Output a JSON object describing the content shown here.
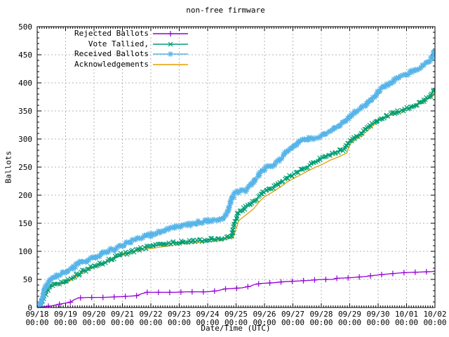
{
  "chart_data": {
    "type": "line",
    "title": "non-free firmware",
    "xlabel": "Date/Time (UTC)",
    "ylabel": "Ballots",
    "x_unit": "days since 09/18 00:00",
    "xlim": [
      0,
      14
    ],
    "ylim": [
      0,
      500
    ],
    "y_major_step": 50,
    "y_minor_step": 10,
    "x_minor_per_day": 12,
    "grid": "dashed gray at every day (x) and every 50 ballots (y)",
    "legend_position": "top-left inside plot, no box",
    "x_ticks": [
      {
        "date": "09/18",
        "time": "00:00"
      },
      {
        "date": "09/19",
        "time": "00:00"
      },
      {
        "date": "09/20",
        "time": "00:00"
      },
      {
        "date": "09/21",
        "time": "00:00"
      },
      {
        "date": "09/22",
        "time": "00:00"
      },
      {
        "date": "09/23",
        "time": "00:00"
      },
      {
        "date": "09/24",
        "time": "00:00"
      },
      {
        "date": "09/25",
        "time": "00:00"
      },
      {
        "date": "09/26",
        "time": "00:00"
      },
      {
        "date": "09/27",
        "time": "00:00"
      },
      {
        "date": "09/28",
        "time": "00:00"
      },
      {
        "date": "09/29",
        "time": "00:00"
      },
      {
        "date": "09/30",
        "time": "00:00"
      },
      {
        "date": "10/01",
        "time": "00:00"
      },
      {
        "date": "10/02",
        "time": "00:00"
      }
    ],
    "y_ticks": [
      0,
      50,
      100,
      150,
      200,
      250,
      300,
      350,
      400,
      450,
      500
    ],
    "series": [
      {
        "name": "Rejected Ballots",
        "color": "#9400d3",
        "marker": "plus",
        "points": [
          [
            0,
            0
          ],
          [
            0.2,
            1
          ],
          [
            0.5,
            3
          ],
          [
            0.8,
            6
          ],
          [
            1,
            8
          ],
          [
            1.15,
            9
          ],
          [
            1.3,
            14
          ],
          [
            1.45,
            17
          ],
          [
            1.8,
            18
          ],
          [
            2.3,
            18
          ],
          [
            2.8,
            19
          ],
          [
            3.2,
            20
          ],
          [
            3.5,
            21
          ],
          [
            3.65,
            24
          ],
          [
            3.85,
            27
          ],
          [
            4.3,
            27
          ],
          [
            4.8,
            27
          ],
          [
            5.3,
            28
          ],
          [
            6,
            28
          ],
          [
            6.35,
            30
          ],
          [
            6.6,
            33
          ],
          [
            6.9,
            34
          ],
          [
            7.2,
            35
          ],
          [
            7.5,
            38
          ],
          [
            7.65,
            41
          ],
          [
            7.9,
            43
          ],
          [
            8.3,
            44
          ],
          [
            8.7,
            46
          ],
          [
            9.1,
            47
          ],
          [
            9.5,
            48
          ],
          [
            10,
            50
          ],
          [
            10.4,
            50
          ],
          [
            10.55,
            52
          ],
          [
            11,
            53
          ],
          [
            11.5,
            55
          ],
          [
            12,
            58
          ],
          [
            12.4,
            60
          ],
          [
            12.9,
            62
          ],
          [
            13.4,
            63
          ],
          [
            13.9,
            64
          ],
          [
            14,
            65
          ]
        ]
      },
      {
        "name": "Vote Tallied,",
        "color": "#009e73",
        "marker": "cross",
        "points": [
          [
            0,
            0
          ],
          [
            0.1,
            2
          ],
          [
            0.25,
            20
          ],
          [
            0.4,
            35
          ],
          [
            0.6,
            42
          ],
          [
            0.85,
            44
          ],
          [
            1,
            45
          ],
          [
            1.3,
            55
          ],
          [
            1.6,
            64
          ],
          [
            1.85,
            70
          ],
          [
            2,
            73
          ],
          [
            2.3,
            79
          ],
          [
            2.6,
            86
          ],
          [
            2.85,
            92
          ],
          [
            3,
            95
          ],
          [
            3.3,
            99
          ],
          [
            3.6,
            104
          ],
          [
            3.85,
            107
          ],
          [
            4,
            108
          ],
          [
            4.3,
            111
          ],
          [
            4.6,
            114
          ],
          [
            5,
            116
          ],
          [
            5.4,
            117
          ],
          [
            5.8,
            119
          ],
          [
            6.2,
            121
          ],
          [
            6.6,
            123
          ],
          [
            6.85,
            127
          ],
          [
            6.95,
            150
          ],
          [
            7.05,
            168
          ],
          [
            7.2,
            174
          ],
          [
            7.4,
            180
          ],
          [
            7.6,
            188
          ],
          [
            7.85,
            200
          ],
          [
            8,
            206
          ],
          [
            8.3,
            214
          ],
          [
            8.6,
            224
          ],
          [
            8.85,
            232
          ],
          [
            9,
            237
          ],
          [
            9.3,
            245
          ],
          [
            9.6,
            254
          ],
          [
            9.85,
            262
          ],
          [
            10,
            266
          ],
          [
            10.3,
            272
          ],
          [
            10.6,
            278
          ],
          [
            10.85,
            284
          ],
          [
            10.97,
            296
          ],
          [
            11.1,
            300
          ],
          [
            11.4,
            310
          ],
          [
            11.7,
            322
          ],
          [
            12,
            335
          ],
          [
            12.3,
            341
          ],
          [
            12.6,
            347
          ],
          [
            13,
            354
          ],
          [
            13.3,
            361
          ],
          [
            13.6,
            368
          ],
          [
            13.85,
            377
          ],
          [
            13.97,
            387
          ],
          [
            14,
            390
          ]
        ]
      },
      {
        "name": "Received Ballots",
        "color": "#56b4e9",
        "marker": "star",
        "points": [
          [
            0,
            0
          ],
          [
            0.07,
            2
          ],
          [
            0.15,
            12
          ],
          [
            0.25,
            30
          ],
          [
            0.4,
            46
          ],
          [
            0.55,
            54
          ],
          [
            0.8,
            59
          ],
          [
            1,
            62
          ],
          [
            1.25,
            71
          ],
          [
            1.5,
            79
          ],
          [
            1.8,
            85
          ],
          [
            2,
            88
          ],
          [
            2.25,
            95
          ],
          [
            2.5,
            101
          ],
          [
            2.8,
            106
          ],
          [
            3,
            110
          ],
          [
            3.3,
            118
          ],
          [
            3.6,
            124
          ],
          [
            3.9,
            128
          ],
          [
            4,
            129
          ],
          [
            4.3,
            135
          ],
          [
            4.6,
            141
          ],
          [
            4.8,
            143
          ],
          [
            5,
            144
          ],
          [
            5.3,
            147
          ],
          [
            5.6,
            151
          ],
          [
            5.9,
            154
          ],
          [
            6.2,
            156
          ],
          [
            6.5,
            159
          ],
          [
            6.7,
            170
          ],
          [
            6.85,
            192
          ],
          [
            7,
            205
          ],
          [
            7.15,
            207
          ],
          [
            7.35,
            208
          ],
          [
            7.6,
            222
          ],
          [
            7.85,
            240
          ],
          [
            8,
            247
          ],
          [
            8.3,
            254
          ],
          [
            8.6,
            266
          ],
          [
            8.85,
            280
          ],
          [
            9,
            285
          ],
          [
            9.2,
            294
          ],
          [
            9.45,
            300
          ],
          [
            9.75,
            302
          ],
          [
            10,
            304
          ],
          [
            10.3,
            315
          ],
          [
            10.6,
            323
          ],
          [
            10.9,
            334
          ],
          [
            11.05,
            342
          ],
          [
            11.3,
            352
          ],
          [
            11.6,
            362
          ],
          [
            11.9,
            376
          ],
          [
            12,
            385
          ],
          [
            12.3,
            396
          ],
          [
            12.6,
            405
          ],
          [
            12.9,
            414
          ],
          [
            13,
            416
          ],
          [
            13.3,
            423
          ],
          [
            13.6,
            431
          ],
          [
            13.85,
            441
          ],
          [
            13.95,
            450
          ],
          [
            14,
            457
          ]
        ]
      },
      {
        "name": "Acknowledgements",
        "color": "#e69f00",
        "marker": "none",
        "points": [
          [
            0,
            0
          ],
          [
            0.12,
            2
          ],
          [
            0.3,
            22
          ],
          [
            0.45,
            36
          ],
          [
            0.65,
            41
          ],
          [
            1,
            43
          ],
          [
            1.3,
            52
          ],
          [
            1.6,
            62
          ],
          [
            1.85,
            68
          ],
          [
            2,
            71
          ],
          [
            2.3,
            77
          ],
          [
            2.6,
            84
          ],
          [
            2.85,
            90
          ],
          [
            3,
            93
          ],
          [
            3.3,
            97
          ],
          [
            3.6,
            102
          ],
          [
            4,
            105
          ],
          [
            4.4,
            108
          ],
          [
            4.8,
            111
          ],
          [
            5,
            113
          ],
          [
            5.5,
            115
          ],
          [
            6,
            117
          ],
          [
            6.5,
            120
          ],
          [
            6.9,
            124
          ],
          [
            7,
            140
          ],
          [
            7.1,
            155
          ],
          [
            7.3,
            163
          ],
          [
            7.6,
            175
          ],
          [
            7.85,
            190
          ],
          [
            8,
            197
          ],
          [
            8.3,
            206
          ],
          [
            8.6,
            216
          ],
          [
            8.85,
            225
          ],
          [
            9,
            229
          ],
          [
            9.3,
            237
          ],
          [
            9.6,
            245
          ],
          [
            9.85,
            251
          ],
          [
            10,
            254
          ],
          [
            10.3,
            262
          ],
          [
            10.6,
            268
          ],
          [
            10.9,
            275
          ],
          [
            11,
            290
          ],
          [
            11.1,
            295
          ],
          [
            11.4,
            305
          ],
          [
            11.7,
            318
          ],
          [
            12,
            332
          ],
          [
            12.3,
            339
          ],
          [
            12.6,
            345
          ],
          [
            13,
            351
          ],
          [
            13.3,
            358
          ],
          [
            13.6,
            366
          ],
          [
            13.85,
            374
          ],
          [
            14,
            380
          ]
        ]
      }
    ]
  },
  "colors": {
    "background": "#ffffff",
    "border": "#000000",
    "grid": "#b4b4b4",
    "text": "#000000"
  }
}
